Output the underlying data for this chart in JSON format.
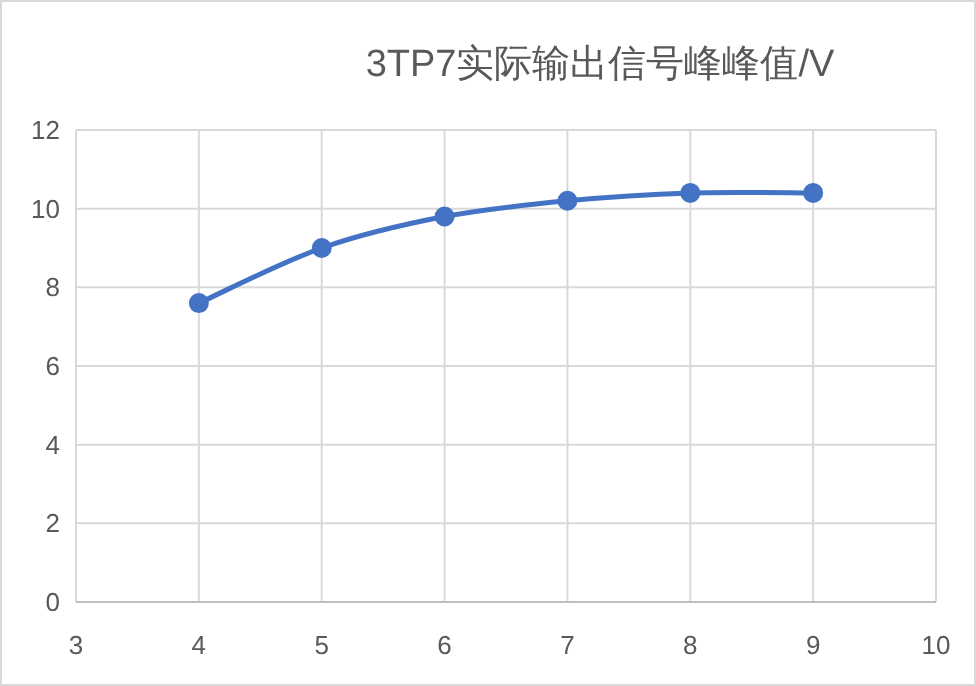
{
  "chart_data": {
    "type": "line",
    "title": "3TP7实际输出信号峰峰值/V",
    "x": [
      4,
      5,
      6,
      7,
      8,
      9
    ],
    "series": [
      {
        "color": "#4472c4",
        "values": [
          7.6,
          9.0,
          9.8,
          10.2,
          10.4,
          10.4
        ]
      }
    ],
    "xlim": [
      3,
      10
    ],
    "xticks": [
      3,
      4,
      5,
      6,
      7,
      8,
      9,
      10
    ],
    "ylim": [
      0,
      12
    ],
    "yticks": [
      0,
      2,
      4,
      6,
      8,
      10,
      12
    ],
    "grid": true,
    "marker": "circle",
    "line_style": "solid"
  }
}
